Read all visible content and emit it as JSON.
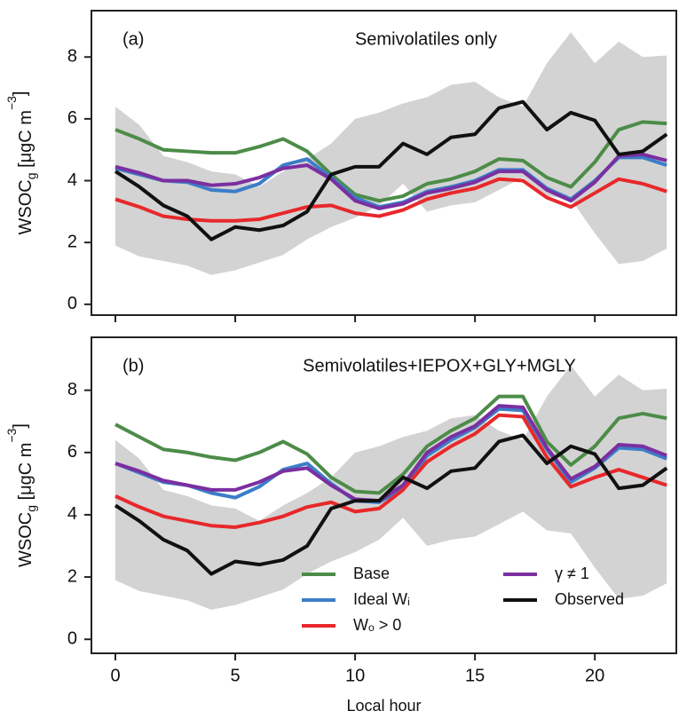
{
  "chart_data": [
    {
      "type": "line",
      "panel_label": "(a)",
      "title": "Semivolatiles only",
      "ylabel": [
        "WSOC",
        "g",
        " [μgC m",
        "−3",
        "]"
      ],
      "x": [
        0,
        1,
        2,
        3,
        4,
        5,
        6,
        7,
        8,
        9,
        10,
        11,
        12,
        13,
        14,
        15,
        16,
        17,
        18,
        19,
        20,
        21,
        22,
        23
      ],
      "xlim": [
        -1,
        23.4
      ],
      "xticks": [
        0,
        5,
        10,
        15,
        20
      ],
      "show_xtick_labels": false,
      "ylim": [
        -0.35,
        9.5
      ],
      "yticks": [
        0,
        2,
        4,
        6,
        8
      ],
      "legend": false,
      "band": {
        "color": "#d3d3d3",
        "lower": [
          1.9,
          1.55,
          1.4,
          1.25,
          0.95,
          1.1,
          1.35,
          1.6,
          2.1,
          2.5,
          2.8,
          3.2,
          3.9,
          3.0,
          3.2,
          3.3,
          3.7,
          4.1,
          3.5,
          3.4,
          2.3,
          1.3,
          1.4,
          1.8
        ],
        "upper": [
          6.4,
          5.8,
          4.8,
          4.6,
          4.3,
          4.2,
          3.8,
          4.3,
          4.7,
          5.2,
          6.0,
          6.2,
          6.5,
          6.7,
          7.1,
          7.2,
          6.7,
          6.4,
          7.8,
          8.8,
          7.8,
          8.5,
          8.0,
          8.05
        ]
      },
      "series": [
        {
          "name": "Base",
          "color": "#4c8c48",
          "values": [
            5.65,
            5.35,
            5.0,
            4.95,
            4.9,
            4.9,
            5.1,
            5.35,
            4.95,
            4.2,
            3.55,
            3.35,
            3.5,
            3.9,
            4.05,
            4.3,
            4.7,
            4.65,
            4.1,
            3.8,
            4.6,
            5.65,
            5.9,
            5.85
          ]
        },
        {
          "name": "Ideal Wᵢ",
          "color": "#3b7dc8",
          "values": [
            4.4,
            4.2,
            4.0,
            3.95,
            3.7,
            3.65,
            3.9,
            4.5,
            4.7,
            4.1,
            3.45,
            3.15,
            3.3,
            3.65,
            3.8,
            4.0,
            4.35,
            4.35,
            3.75,
            3.4,
            4.0,
            4.75,
            4.75,
            4.5
          ]
        },
        {
          "name": "Wₒ > 0",
          "color": "#e8282a",
          "values": [
            3.4,
            3.15,
            2.85,
            2.75,
            2.7,
            2.7,
            2.75,
            2.95,
            3.15,
            3.2,
            2.95,
            2.85,
            3.05,
            3.4,
            3.6,
            3.75,
            4.05,
            4.0,
            3.45,
            3.15,
            3.6,
            4.05,
            3.9,
            3.65
          ]
        },
        {
          "name": "γ ≠ 1",
          "color": "#7b2fa0",
          "values": [
            4.45,
            4.25,
            4.0,
            4.0,
            3.85,
            3.9,
            4.1,
            4.4,
            4.5,
            4.05,
            3.35,
            3.1,
            3.25,
            3.6,
            3.75,
            3.95,
            4.3,
            4.3,
            3.7,
            3.35,
            3.95,
            4.8,
            4.85,
            4.65
          ]
        },
        {
          "name": "Observed",
          "color": "#111111",
          "values": [
            4.3,
            3.8,
            3.2,
            2.85,
            2.1,
            2.5,
            2.4,
            2.55,
            3.0,
            4.2,
            4.45,
            4.45,
            5.2,
            4.85,
            5.4,
            5.5,
            6.35,
            6.55,
            5.65,
            6.2,
            5.95,
            4.85,
            4.95,
            5.5
          ]
        }
      ]
    },
    {
      "type": "line",
      "panel_label": "(b)",
      "title": "Semivolatiles+IEPOX+GLY+MGLY",
      "ylabel": [
        "WSOC",
        "g",
        " [μgC m",
        "−3",
        "]"
      ],
      "xlabel": "Local hour",
      "x": [
        0,
        1,
        2,
        3,
        4,
        5,
        6,
        7,
        8,
        9,
        10,
        11,
        12,
        13,
        14,
        15,
        16,
        17,
        18,
        19,
        20,
        21,
        22,
        23
      ],
      "xlim": [
        -1,
        23.4
      ],
      "xticks": [
        0,
        5,
        10,
        15,
        20
      ],
      "show_xtick_labels": true,
      "ylim": [
        -0.45,
        9.7
      ],
      "yticks": [
        0,
        2,
        4,
        6,
        8
      ],
      "legend": "lower center",
      "band": {
        "color": "#d3d3d3",
        "lower": [
          1.9,
          1.55,
          1.4,
          1.25,
          0.95,
          1.1,
          1.35,
          1.6,
          2.1,
          2.5,
          2.8,
          3.2,
          3.9,
          3.0,
          3.2,
          3.3,
          3.7,
          4.1,
          3.5,
          3.4,
          2.3,
          1.3,
          1.4,
          1.8
        ],
        "upper": [
          6.4,
          5.8,
          4.8,
          4.6,
          4.3,
          4.2,
          3.8,
          4.3,
          4.7,
          5.2,
          6.0,
          6.2,
          6.5,
          6.7,
          7.1,
          7.2,
          6.7,
          6.4,
          7.8,
          8.8,
          7.8,
          8.5,
          8.0,
          8.05
        ]
      },
      "series": [
        {
          "name": "Base",
          "color": "#4c8c48",
          "values": [
            6.9,
            6.5,
            6.1,
            6.0,
            5.85,
            5.75,
            6.0,
            6.35,
            5.95,
            5.2,
            4.75,
            4.7,
            5.3,
            6.2,
            6.7,
            7.1,
            7.8,
            7.8,
            6.35,
            5.6,
            6.2,
            7.1,
            7.25,
            7.1
          ]
        },
        {
          "name": "Ideal Wᵢ",
          "color": "#3b7dc8",
          "values": [
            5.65,
            5.35,
            5.05,
            4.95,
            4.7,
            4.55,
            4.9,
            5.45,
            5.65,
            5.0,
            4.45,
            4.4,
            4.85,
            5.9,
            6.4,
            6.8,
            7.4,
            7.35,
            6.1,
            5.05,
            5.5,
            6.15,
            6.1,
            5.8
          ]
        },
        {
          "name": "Wₒ > 0",
          "color": "#e8282a",
          "values": [
            4.6,
            4.25,
            3.95,
            3.8,
            3.65,
            3.6,
            3.75,
            3.95,
            4.25,
            4.4,
            4.1,
            4.2,
            4.8,
            5.7,
            6.2,
            6.6,
            7.2,
            7.15,
            5.85,
            4.9,
            5.2,
            5.45,
            5.2,
            4.95
          ]
        },
        {
          "name": "γ ≠ 1",
          "color": "#7b2fa0",
          "values": [
            5.65,
            5.4,
            5.1,
            4.95,
            4.8,
            4.8,
            5.05,
            5.4,
            5.5,
            4.95,
            4.5,
            4.45,
            4.95,
            6.0,
            6.5,
            6.85,
            7.5,
            7.45,
            6.15,
            5.15,
            5.55,
            6.25,
            6.2,
            5.9
          ]
        },
        {
          "name": "Observed",
          "color": "#111111",
          "values": [
            4.3,
            3.8,
            3.2,
            2.85,
            2.1,
            2.5,
            2.4,
            2.55,
            3.0,
            4.2,
            4.45,
            4.45,
            5.2,
            4.85,
            5.4,
            5.5,
            6.35,
            6.55,
            5.65,
            6.2,
            5.95,
            4.85,
            4.95,
            5.5
          ]
        }
      ]
    }
  ]
}
